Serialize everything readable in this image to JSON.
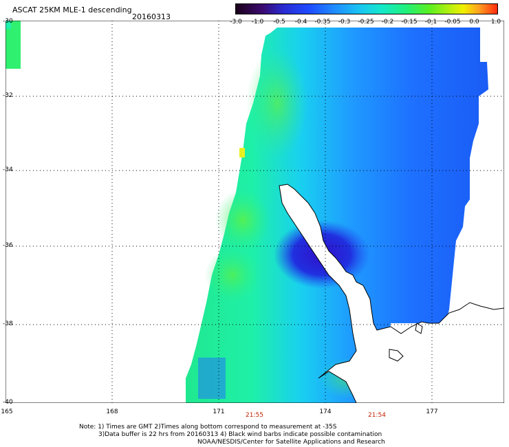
{
  "title": "ASCAT 25KM MLE-1 descending",
  "date": "20160313",
  "colorbar": {
    "ticks": [
      "-3.0",
      "-1.0",
      "-0.5",
      "-0.4",
      "-0.35",
      "-0.3",
      "-0.25",
      "-0.2",
      "-0.15",
      "-0.1",
      "-0.05",
      "0.0",
      "1.0"
    ]
  },
  "axes": {
    "lat_labels": [
      "-30",
      "-32",
      "-34",
      "-36",
      "-38",
      "-40"
    ],
    "lon_labels": [
      "165",
      "168",
      "171",
      "174",
      "177"
    ]
  },
  "times": [
    "21:55",
    "21:54"
  ],
  "notes": [
    "Note: 1) Times are GMT 2)Times along bottom correspond to measurement at -35S",
    "3)Data buffer is 22 hrs from 20160313 4) Black wind barbs indicate possible contamination",
    "NOAA/NESDIS/Center for Satellite Applications and Research"
  ],
  "colors": {
    "swath_green": "#2ef07a",
    "swath_cyan": "#18e0e0",
    "swath_blue": "#1e6cff",
    "swath_dark": "#2a1ad0",
    "land": "#ffffff"
  }
}
